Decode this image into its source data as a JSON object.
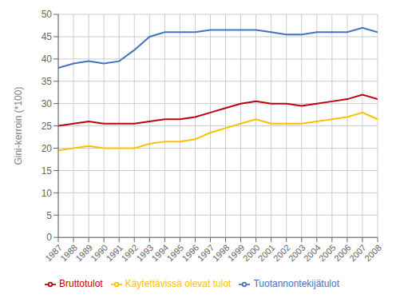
{
  "chart_data": {
    "type": "line",
    "x": [
      1987,
      1988,
      1989,
      1990,
      1991,
      1992,
      1993,
      1994,
      1995,
      1996,
      1997,
      1998,
      1999,
      2000,
      2001,
      2002,
      2003,
      2004,
      2005,
      2006,
      2007,
      2008
    ],
    "series": [
      {
        "name": "Tuotannontekijätulot",
        "color": "#4472C4",
        "values": [
          38.0,
          39.0,
          39.5,
          39.0,
          39.5,
          42.0,
          45.0,
          46.0,
          46.0,
          46.0,
          46.5,
          46.5,
          46.5,
          46.5,
          46.0,
          45.5,
          45.5,
          46.0,
          46.0,
          46.0,
          47.0,
          46.0
        ]
      },
      {
        "name": "Bruttotulot",
        "color": "#C0000A",
        "values": [
          25.0,
          25.5,
          26.0,
          25.5,
          25.5,
          25.5,
          26.0,
          26.5,
          26.5,
          27.0,
          28.0,
          29.0,
          30.0,
          30.5,
          30.0,
          30.0,
          29.5,
          30.0,
          30.5,
          31.0,
          32.0,
          31.0
        ]
      },
      {
        "name": "Käytettävissä olevat tulot",
        "color": "#FFC000",
        "values": [
          19.5,
          20.0,
          20.5,
          20.0,
          20.0,
          20.0,
          21.0,
          21.5,
          21.5,
          22.0,
          23.5,
          24.5,
          25.5,
          26.5,
          25.5,
          25.5,
          25.5,
          26.0,
          26.5,
          27.0,
          28.0,
          26.5
        ]
      }
    ],
    "ylabel": "Gini-kerroin (*100)",
    "xlim": [
      1987,
      2008
    ],
    "xticks": [
      1987,
      1988,
      1989,
      1990,
      1991,
      1992,
      1993,
      1994,
      1995,
      1996,
      1997,
      1998,
      1999,
      2000,
      2001,
      2002,
      2003,
      2004,
      2005,
      2006,
      2007,
      2008
    ],
    "ylim": [
      0,
      50
    ],
    "yticks": [
      0,
      5,
      10,
      15,
      20,
      25,
      30,
      35,
      40,
      45,
      50
    ],
    "grid": true,
    "legend": "bottom"
  }
}
